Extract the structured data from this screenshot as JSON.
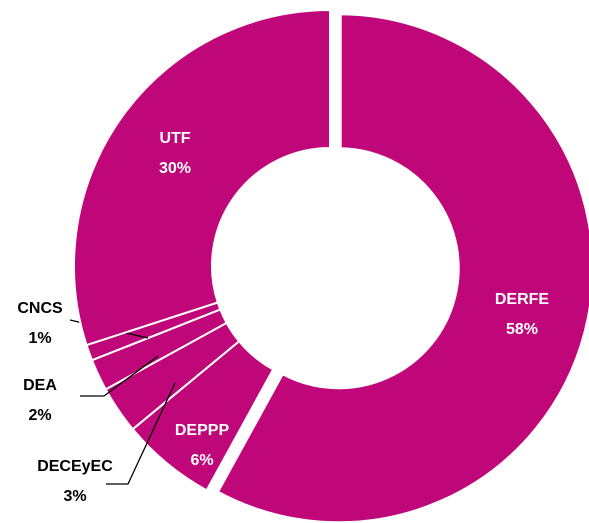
{
  "chart_data": {
    "type": "pie",
    "donut": true,
    "color": "#c0077a",
    "categories": [
      "DERFE",
      "DEPPP",
      "DECEyEC",
      "DEA",
      "CNCS",
      "UTF"
    ],
    "values": [
      58,
      6,
      3,
      2,
      1,
      30
    ],
    "value_labels": [
      "58%",
      "6%",
      "3%",
      "2%",
      "1%",
      "30%"
    ]
  }
}
